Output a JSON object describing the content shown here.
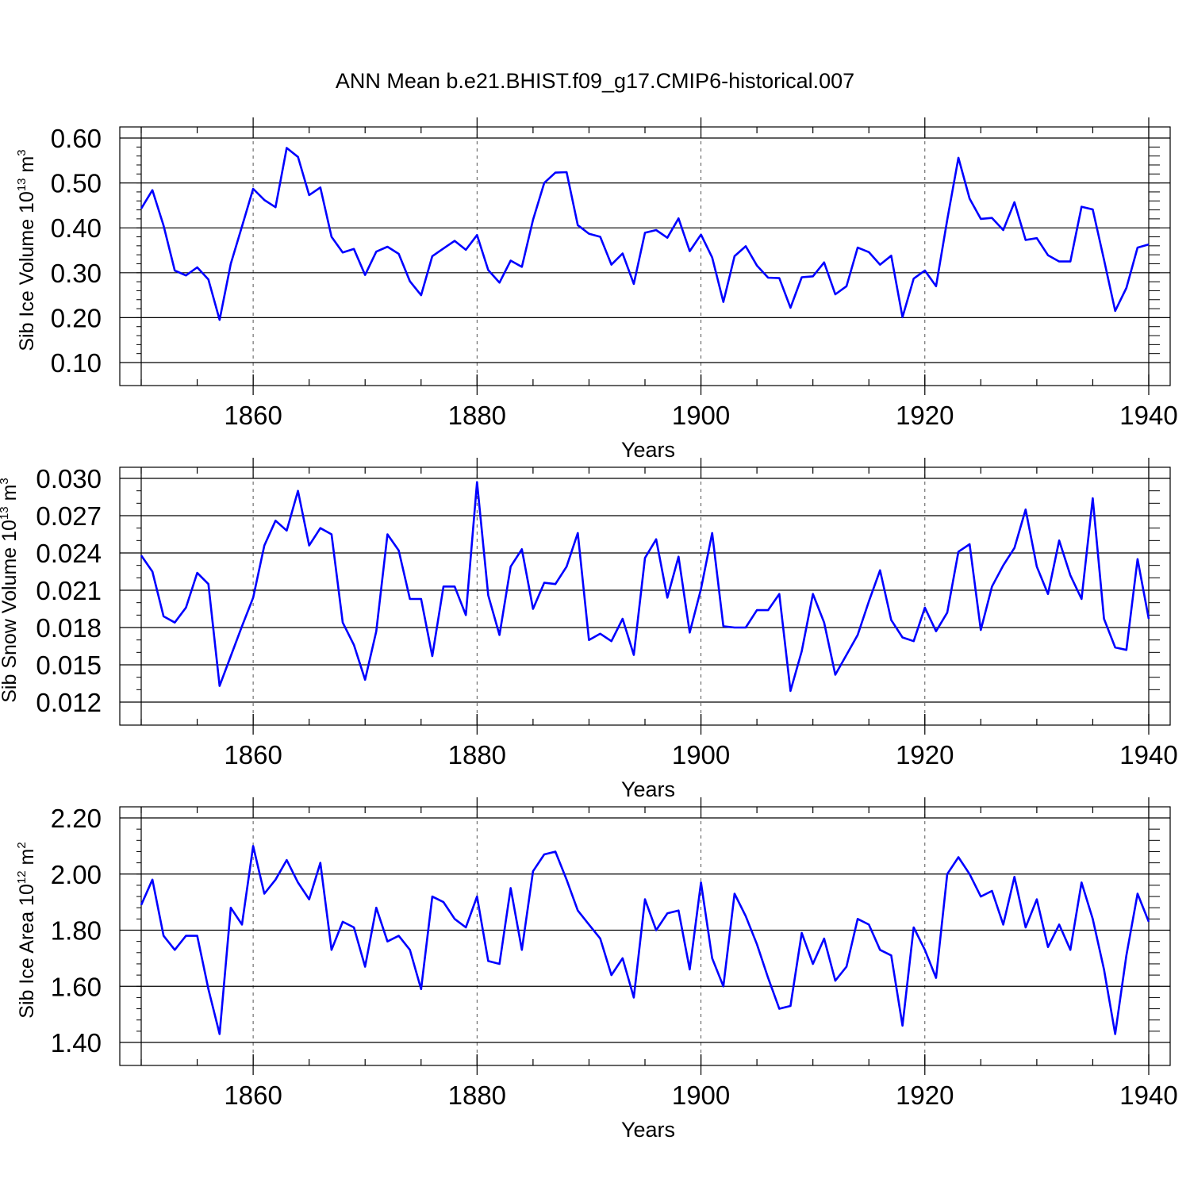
{
  "title": "ANN Mean b.e21.BHIST.f09_g17.CMIP6-historical.007",
  "line_color": "#0000ff",
  "chart_data": [
    {
      "type": "line",
      "ylabel": {
        "text": "Sib Ice Volume 10",
        "exp": "13",
        "unit": " m",
        "unit_exp": "3"
      },
      "xlabel": "Years",
      "xlim": [
        1850,
        1940
      ],
      "ylim": [
        0.1,
        0.6
      ],
      "xticks": [
        1860,
        1880,
        1900,
        1920,
        1940
      ],
      "yticks": [
        0.1,
        0.2,
        0.3,
        0.4,
        0.5,
        0.6
      ],
      "ytick_labels": [
        "0.10",
        "0.20",
        "0.30",
        "0.40",
        "0.50",
        "0.60"
      ],
      "ymajor": 0.1,
      "yminor": 0.02,
      "grid": "vertical dashed at major x ticks",
      "x_start": 1850,
      "values": [
        0.443,
        0.484,
        0.405,
        0.305,
        0.294,
        0.312,
        0.285,
        0.195,
        0.32,
        0.403,
        0.487,
        0.462,
        0.446,
        0.578,
        0.558,
        0.473,
        0.49,
        0.38,
        0.345,
        0.353,
        0.295,
        0.347,
        0.358,
        0.342,
        0.281,
        0.25,
        0.337,
        0.354,
        0.371,
        0.351,
        0.384,
        0.306,
        0.278,
        0.327,
        0.313,
        0.418,
        0.5,
        0.523,
        0.524,
        0.406,
        0.387,
        0.38,
        0.318,
        0.343,
        0.275,
        0.389,
        0.395,
        0.378,
        0.421,
        0.348,
        0.385,
        0.334,
        0.235,
        0.337,
        0.359,
        0.316,
        0.289,
        0.288,
        0.222,
        0.29,
        0.292,
        0.323,
        0.252,
        0.27,
        0.356,
        0.346,
        0.318,
        0.338,
        0.201,
        0.287,
        0.305,
        0.27,
        0.418,
        0.556,
        0.465,
        0.42,
        0.422,
        0.395,
        0.457,
        0.373,
        0.377,
        0.339,
        0.325,
        0.325,
        0.447,
        0.441,
        0.329,
        0.215,
        0.266,
        0.356,
        0.363
      ]
    },
    {
      "type": "line",
      "ylabel": {
        "text": "Sib Snow Volume 10",
        "exp": "13",
        "unit": " m",
        "unit_exp": "3"
      },
      "xlabel": "Years",
      "xlim": [
        1850,
        1940
      ],
      "ylim": [
        0.012,
        0.03
      ],
      "xticks": [
        1860,
        1880,
        1900,
        1920,
        1940
      ],
      "yticks": [
        0.012,
        0.015,
        0.018,
        0.021,
        0.024,
        0.027,
        0.03
      ],
      "ytick_labels": [
        "0.012",
        "0.015",
        "0.018",
        "0.021",
        "0.024",
        "0.027",
        "0.030"
      ],
      "ymajor": 0.003,
      "yminor": 0.001,
      "grid": "vertical dashed at major x ticks",
      "x_start": 1850,
      "values": [
        0.0238,
        0.0225,
        0.0189,
        0.0184,
        0.0196,
        0.0224,
        0.0215,
        0.0133,
        0.0157,
        0.0181,
        0.0204,
        0.0246,
        0.0266,
        0.0258,
        0.029,
        0.0246,
        0.026,
        0.0255,
        0.0184,
        0.0166,
        0.0138,
        0.0177,
        0.0255,
        0.0242,
        0.0203,
        0.0203,
        0.0157,
        0.0213,
        0.0213,
        0.019,
        0.0297,
        0.0206,
        0.0174,
        0.0229,
        0.0243,
        0.0195,
        0.0216,
        0.0215,
        0.0229,
        0.0256,
        0.017,
        0.0175,
        0.0169,
        0.0187,
        0.0158,
        0.0236,
        0.0251,
        0.0204,
        0.0237,
        0.0176,
        0.0211,
        0.0256,
        0.0181,
        0.018,
        0.018,
        0.0194,
        0.0194,
        0.0207,
        0.0129,
        0.0161,
        0.0207,
        0.0184,
        0.0142,
        0.0158,
        0.0174,
        0.0201,
        0.0226,
        0.0186,
        0.0172,
        0.0169,
        0.0196,
        0.0177,
        0.0192,
        0.0241,
        0.0247,
        0.0178,
        0.0213,
        0.023,
        0.0244,
        0.0275,
        0.0229,
        0.0207,
        0.025,
        0.0222,
        0.0203,
        0.0284,
        0.0187,
        0.0164,
        0.0162,
        0.0235,
        0.0187
      ]
    },
    {
      "type": "line",
      "ylabel": {
        "text": "Sib Ice Area 10",
        "exp": "12",
        "unit": " m",
        "unit_exp": "2"
      },
      "xlabel": "Years",
      "xlim": [
        1850,
        1940
      ],
      "ylim": [
        1.4,
        2.2
      ],
      "xticks": [
        1860,
        1880,
        1900,
        1920,
        1940
      ],
      "yticks": [
        1.4,
        1.6,
        1.8,
        2.0,
        2.2
      ],
      "ytick_labels": [
        "1.40",
        "1.60",
        "1.80",
        "2.00",
        "2.20"
      ],
      "ymajor": 0.2,
      "yminor": 0.04,
      "grid": "vertical dashed at major x ticks",
      "x_start": 1850,
      "values": [
        1.89,
        1.98,
        1.78,
        1.73,
        1.78,
        1.78,
        1.59,
        1.43,
        1.88,
        1.82,
        2.1,
        1.93,
        1.98,
        2.05,
        1.97,
        1.91,
        2.04,
        1.73,
        1.83,
        1.81,
        1.67,
        1.88,
        1.76,
        1.78,
        1.73,
        1.59,
        1.92,
        1.9,
        1.84,
        1.81,
        1.92,
        1.69,
        1.68,
        1.95,
        1.73,
        2.01,
        2.07,
        2.08,
        1.98,
        1.87,
        1.82,
        1.77,
        1.64,
        1.7,
        1.56,
        1.91,
        1.8,
        1.86,
        1.87,
        1.66,
        1.97,
        1.7,
        1.6,
        1.93,
        1.85,
        1.75,
        1.63,
        1.52,
        1.53,
        1.79,
        1.68,
        1.77,
        1.62,
        1.67,
        1.84,
        1.82,
        1.73,
        1.71,
        1.46,
        1.81,
        1.73,
        1.63,
        2.0,
        2.06,
        2.0,
        1.92,
        1.94,
        1.82,
        1.99,
        1.81,
        1.91,
        1.74,
        1.82,
        1.73,
        1.97,
        1.84,
        1.66,
        1.43,
        1.71,
        1.93,
        1.83
      ]
    }
  ]
}
